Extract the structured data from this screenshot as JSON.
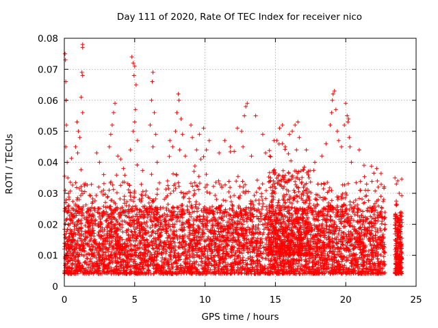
{
  "colors": {
    "series": "#ff0000",
    "axis": "#000000",
    "grid": "#a0a0a0",
    "background": "#ffffff"
  },
  "chart_data": {
    "type": "scatter",
    "title": "Day 111 of 2020, Rate Of TEC Index for receiver nico",
    "xlabel": "GPS time / hours",
    "ylabel": "ROTI / TECUs",
    "xlim": [
      0,
      25
    ],
    "ylim": [
      0,
      0.08
    ],
    "xticks": [
      "0",
      "5",
      "10",
      "15",
      "20",
      "25"
    ],
    "yticks": [
      "0",
      "0.01",
      "0.02",
      "0.03",
      "0.04",
      "0.05",
      "0.06",
      "0.07",
      "0.08"
    ],
    "xtick_values": [
      0,
      5,
      10,
      15,
      20,
      25
    ],
    "ytick_values": [
      0,
      0.01,
      0.02,
      0.03,
      0.04,
      0.05,
      0.06,
      0.07,
      0.08
    ],
    "grid": true,
    "marker": "+",
    "series": [
      {
        "name": "ROTI",
        "description": "dense band mostly 0.005-0.025 TECUs from 0 to ~22.8 h, data gap 22.8-23.5 h, second cluster 23.5-24 h",
        "points": [
          [
            0.05,
            0.075
          ],
          [
            0.08,
            0.073
          ],
          [
            0.1,
            0.066
          ],
          [
            0.12,
            0.06
          ],
          [
            0.15,
            0.052
          ],
          [
            0.1,
            0.045
          ],
          [
            0.2,
            0.04
          ],
          [
            0.25,
            0.035
          ],
          [
            0.3,
            0.03
          ],
          [
            1.3,
            0.078
          ],
          [
            1.3,
            0.077
          ],
          [
            1.25,
            0.069
          ],
          [
            1.3,
            0.068
          ],
          [
            1.2,
            0.061
          ],
          [
            1.3,
            0.056
          ],
          [
            0.9,
            0.053
          ],
          [
            1.0,
            0.05
          ],
          [
            1.1,
            0.048
          ],
          [
            0.8,
            0.045
          ],
          [
            0.95,
            0.043
          ],
          [
            2.3,
            0.043
          ],
          [
            2.5,
            0.04
          ],
          [
            2.8,
            0.036
          ],
          [
            3.2,
            0.045
          ],
          [
            3.4,
            0.052
          ],
          [
            3.5,
            0.056
          ],
          [
            3.6,
            0.059
          ],
          [
            3.3,
            0.049
          ],
          [
            3.8,
            0.042
          ],
          [
            4.0,
            0.041
          ],
          [
            4.2,
            0.038
          ],
          [
            4.8,
            0.074
          ],
          [
            4.9,
            0.072
          ],
          [
            5.0,
            0.071
          ],
          [
            4.95,
            0.068
          ],
          [
            5.1,
            0.065
          ],
          [
            5.05,
            0.057
          ],
          [
            5.0,
            0.053
          ],
          [
            4.9,
            0.05
          ],
          [
            5.2,
            0.047
          ],
          [
            4.7,
            0.044
          ],
          [
            6.3,
            0.069
          ],
          [
            6.25,
            0.066
          ],
          [
            6.2,
            0.06
          ],
          [
            6.4,
            0.056
          ],
          [
            6.1,
            0.052
          ],
          [
            6.5,
            0.049
          ],
          [
            6.3,
            0.045
          ],
          [
            6.6,
            0.04
          ],
          [
            7.5,
            0.047
          ],
          [
            7.7,
            0.045
          ],
          [
            7.9,
            0.05
          ],
          [
            8.0,
            0.056
          ],
          [
            8.1,
            0.062
          ],
          [
            8.15,
            0.06
          ],
          [
            8.3,
            0.054
          ],
          [
            8.4,
            0.049
          ],
          [
            8.2,
            0.044
          ],
          [
            8.6,
            0.042
          ],
          [
            9.0,
            0.052
          ],
          [
            9.1,
            0.048
          ],
          [
            9.4,
            0.044
          ],
          [
            9.6,
            0.049
          ],
          [
            9.9,
            0.051
          ],
          [
            10.1,
            0.044
          ],
          [
            10.3,
            0.047
          ],
          [
            9.7,
            0.041
          ],
          [
            11.0,
            0.043
          ],
          [
            11.4,
            0.047
          ],
          [
            11.8,
            0.045
          ],
          [
            12.3,
            0.051
          ],
          [
            12.6,
            0.05
          ],
          [
            12.8,
            0.055
          ],
          [
            12.9,
            0.058
          ],
          [
            13.0,
            0.059
          ],
          [
            12.7,
            0.045
          ],
          [
            13.3,
            0.042
          ],
          [
            13.6,
            0.055
          ],
          [
            14.1,
            0.049
          ],
          [
            14.3,
            0.043
          ],
          [
            14.6,
            0.042
          ],
          [
            14.9,
            0.047
          ],
          [
            15.1,
            0.047
          ],
          [
            15.3,
            0.051
          ],
          [
            15.5,
            0.052
          ],
          [
            15.5,
            0.046
          ],
          [
            15.7,
            0.045
          ],
          [
            16.0,
            0.049
          ],
          [
            16.2,
            0.05
          ],
          [
            16.4,
            0.052
          ],
          [
            16.6,
            0.053
          ],
          [
            16.7,
            0.048
          ],
          [
            16.5,
            0.044
          ],
          [
            17.2,
            0.044
          ],
          [
            17.8,
            0.04
          ],
          [
            18.3,
            0.042
          ],
          [
            18.6,
            0.046
          ],
          [
            18.9,
            0.052
          ],
          [
            19.0,
            0.056
          ],
          [
            19.05,
            0.06
          ],
          [
            19.1,
            0.062
          ],
          [
            19.2,
            0.063
          ],
          [
            19.3,
            0.057
          ],
          [
            19.4,
            0.05
          ],
          [
            19.5,
            0.047
          ],
          [
            19.7,
            0.045
          ],
          [
            19.9,
            0.052
          ],
          [
            20.0,
            0.059
          ],
          [
            20.1,
            0.055
          ],
          [
            20.15,
            0.053
          ],
          [
            20.2,
            0.054
          ],
          [
            20.25,
            0.048
          ],
          [
            20.3,
            0.045
          ],
          [
            20.4,
            0.04
          ],
          [
            21.3,
            0.039
          ],
          [
            22.2,
            0.038
          ],
          [
            22.5,
            0.029
          ],
          [
            22.7,
            0.028
          ],
          [
            23.5,
            0.035
          ],
          [
            23.6,
            0.033
          ],
          [
            23.7,
            0.034
          ],
          [
            23.8,
            0.03
          ]
        ]
      }
    ]
  }
}
